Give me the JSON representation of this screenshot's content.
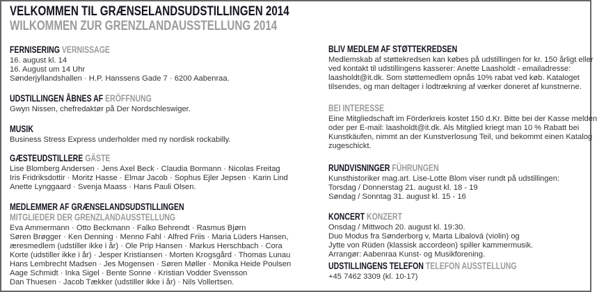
{
  "title": {
    "danish": "VELKOMMEN TIL GRÆNSELANDSUDSTILLINGEN 2014",
    "german": "WILKOMMEN ZUR GRENZLANDAUSSTELLUNG 2014"
  },
  "colors": {
    "heading": "#14141f",
    "heading_german": "#9b9b9b",
    "body": "#333333",
    "border": "#666666"
  },
  "left": {
    "fernisering": {
      "heading": "FERNISERING",
      "heading_de": "VERNISSAGE",
      "lines": [
        "16. august kl. 14",
        "16. August um 14 Uhr",
        "Sønderjyllandshallen · H.P. Hanssens Gade 7 · 6200 Aabenraa."
      ]
    },
    "aabnes": {
      "heading": "UDSTILLINGEN ÅBNES AF",
      "heading_de": "ERÖFFNUNG",
      "lines": [
        "Gwyn Nissen, chefredaktør på Der Nordschleswiger."
      ]
    },
    "musik": {
      "heading": "MUSIK",
      "lines": [
        "Business Stress Express underholder med ny nordisk rockabilly."
      ]
    },
    "gaester": {
      "heading": "GÆSTEUDSTILLERE",
      "heading_de": "GÄSTE",
      "lines": [
        "Lise Blomberg Andersen · Jens Axel Beck · Claudia Bormann · Nicolas Freitag",
        "Iris Fridriksdottir · Moritz Hasse · Elmar Jacob · Sophus Ejler Jepsen · Karin Lind",
        "Anette Lynggaard · Svenja Maass · Hans Pauli Olsen."
      ]
    },
    "medlemmer": {
      "heading": "MEDLEMMER AF GRÆNSELANDSUDSTILLINGEN",
      "heading_de": "MITGLIEDER DER GRENZLANDAUSSTELLUNG",
      "lines": [
        "Eva Ammermann · Otto Beckmann · Falko Behrendt · Rasmus Bjørn",
        "Søren Brøgger · Ken Denning · Menno Fahl · Alfred Friis · Maria Lüders Hansen,",
        "æresmedlem (udstiller ikke i år) · Ole Prip Hansen · Markus Herschbach · Cora",
        "Korte (udstiller ikke i år) · Jesper Kristiansen · Morten Krogsgård · Thomas Lunau",
        "Hans Lembrecht Madsen · Jes Mogensen · Søren Møller · Monika Heide Poulsen",
        "Aage Schmidt · Inka Sigel · Bente Sonne · Kristian Vodder Svensson",
        "Dan Thuesen · Jacob Tækker (udstiller ikke i år) · Nils Vollertsen."
      ]
    }
  },
  "right": {
    "stoette": {
      "heading": "BLIV MEDLEM AF STØTTEKREDSEN",
      "lines": [
        "Medlemskab af støttekredsen kan købes på udstillingen for kr. 150 årligt eller",
        "ved kontakt til udstillingens kasserer: Anette Laasholdt - emailadresse:",
        "laasholdt@it.dk. Som støttemedlem opnås 10% rabat ved køb. Kataloget",
        "tilsendes, og man deltager i lodtrækning af værker doneret af kunstnerne."
      ]
    },
    "interesse": {
      "heading_de": "BEI INTERESSE",
      "lines": [
        "Eine Mitgliedschaft im Förderkreis kostet 150 d.Kr. Bitte bei der Kasse melden",
        "oder per E-mail: laasholdt@it.dk. Als Mitglied kriegt man 10 % Rabatt bei",
        "Kunstkäufen, nimmt an der Kunstverlosung Teil, und bekommt einen Katalog",
        "zugeschickt."
      ]
    },
    "rundvisninger": {
      "heading": "RUNDVISNINGER",
      "heading_de": "FÜHRUNGEN",
      "lines": [
        "Kunsthistoriker mag.art. Lise-Lotte Blom viser rundt på udstillingen:",
        "Torsdag / Donnerstag 21. august kl. 18 - 19",
        "Søndag / Sonntag 31. august kl. 15 - 16"
      ]
    },
    "koncert": {
      "heading": "KONCERT",
      "heading_de": "KONZERT",
      "lines": [
        "Onsdag / Mittwoch 20. august kl. 19:30.",
        "Duo Modus fra Sønderborg v, Marta Libalová (violin) og",
        "Jytte von Rüden (klassisk accordeon) spiller kammermusik.",
        "Arrangør: Aabenraa Kunst- og Musikforening."
      ]
    },
    "telefon": {
      "heading": "UDSTILLINGENS TELEFON",
      "heading_de": "TELEFON AUSSTELLUNG",
      "lines": [
        "+45 7462 3309 (kl. 10-17)"
      ]
    }
  }
}
